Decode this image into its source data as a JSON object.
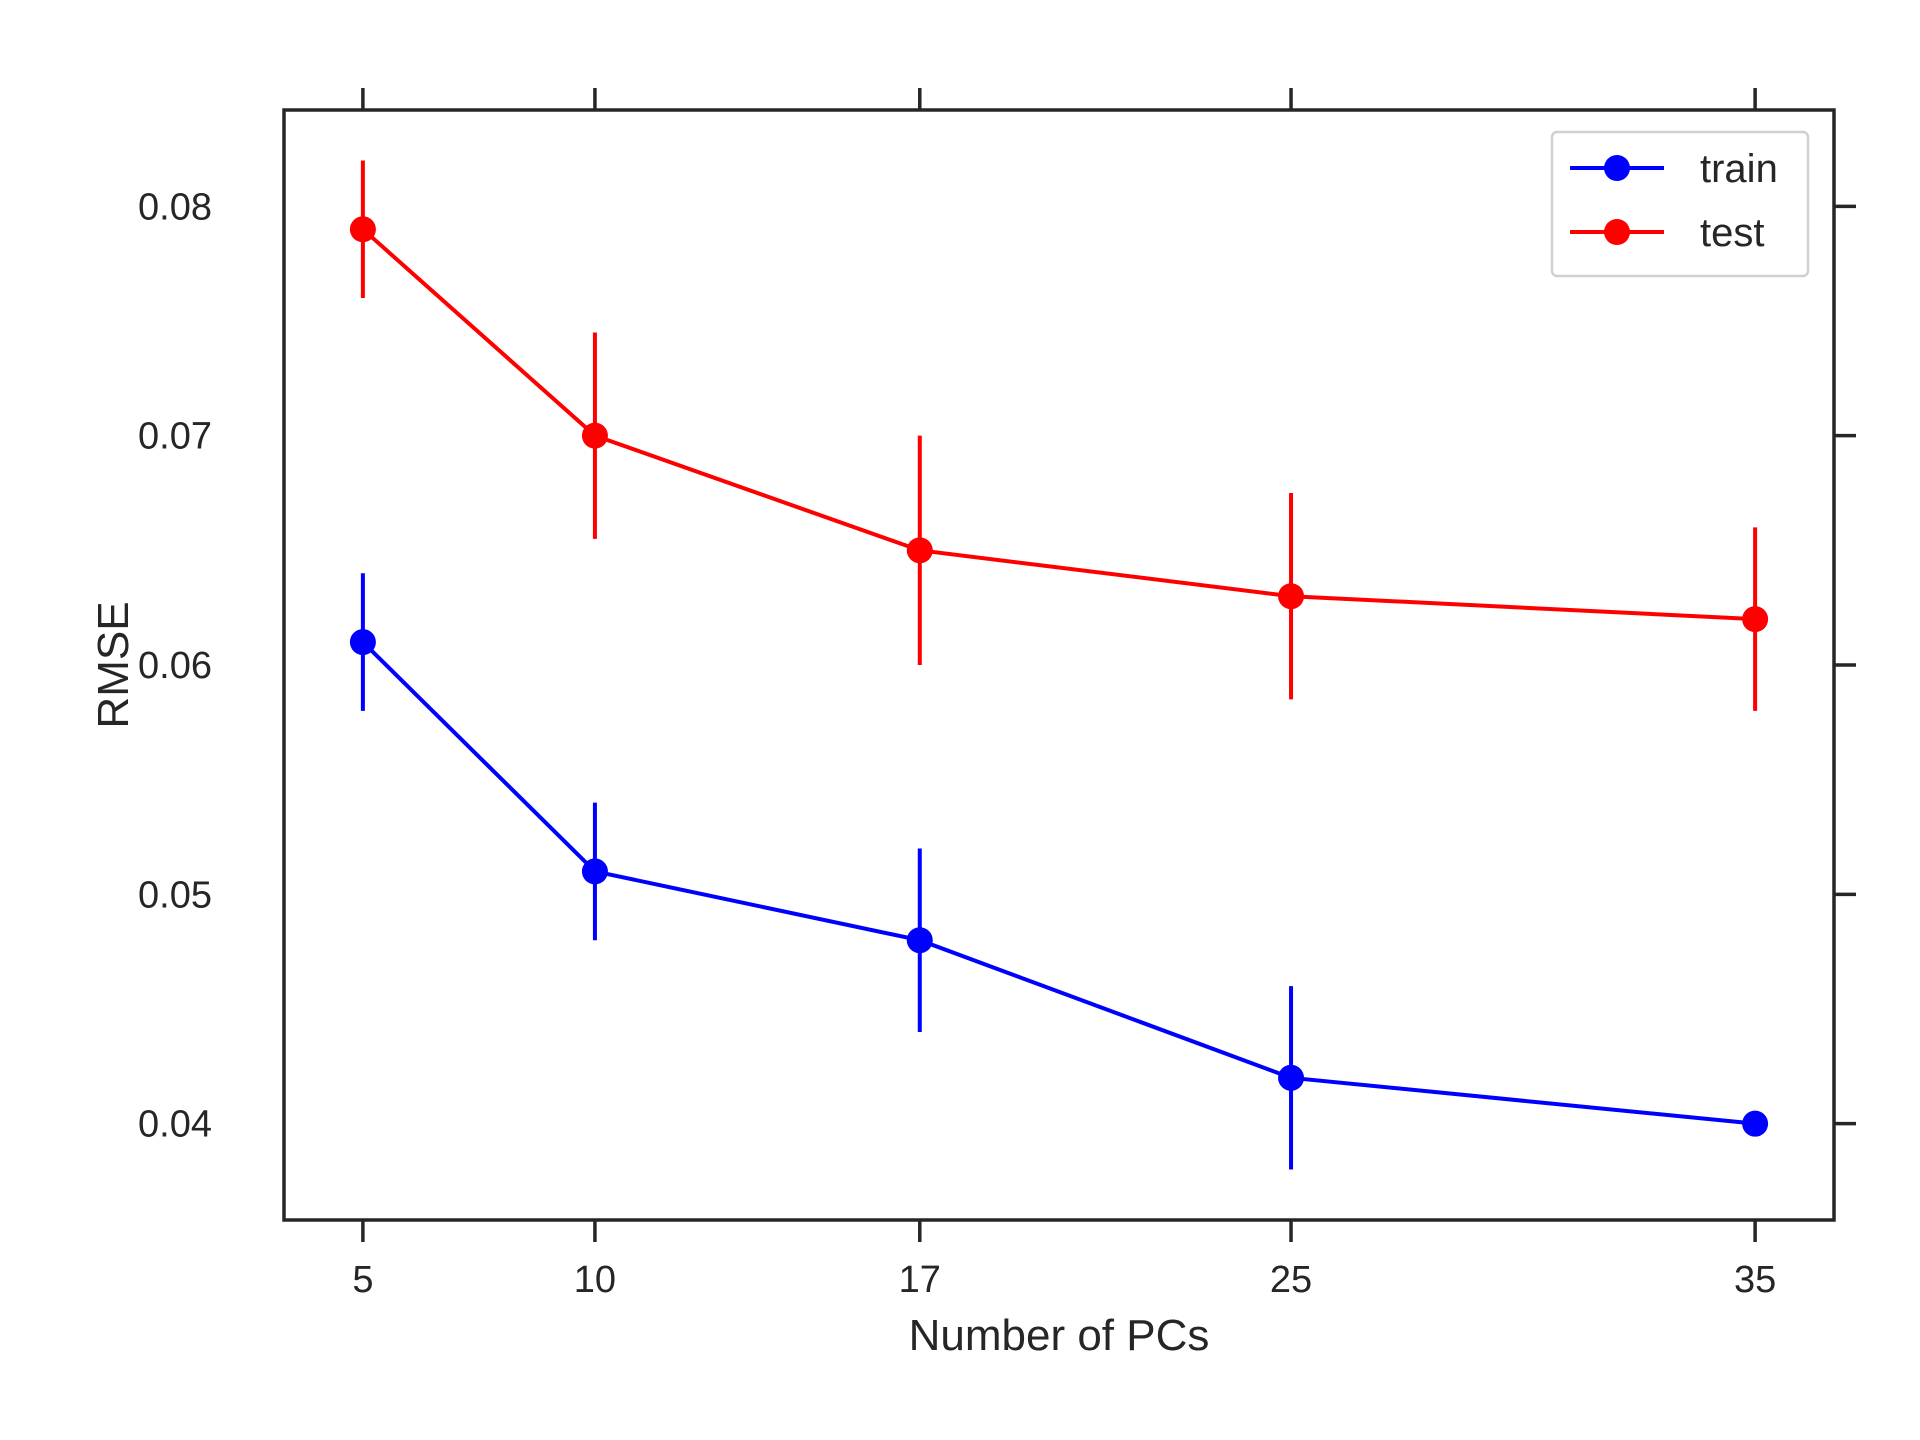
{
  "chart_data": {
    "type": "line",
    "title": "",
    "xlabel": "Number of PCs",
    "ylabel": "RMSE",
    "x": [
      5,
      10,
      17,
      25,
      35
    ],
    "x_ticks": [
      5,
      10,
      17,
      25,
      35
    ],
    "xlim": [
      3.3,
      36.7
    ],
    "y_ticks": [
      0.04,
      0.05,
      0.06,
      0.07,
      0.08
    ],
    "y_tick_labels": [
      "0.04",
      "0.05",
      "0.06",
      "0.07",
      "0.08"
    ],
    "ylim": [
      0.0358,
      0.0842
    ],
    "grid": false,
    "legend_position": "top-right",
    "error_bars": true,
    "series": [
      {
        "name": "train",
        "color": "#0000ff",
        "values": [
          0.061,
          0.051,
          0.048,
          0.042,
          0.04
        ],
        "error": [
          0.003,
          0.003,
          0.004,
          0.004,
          0.0
        ]
      },
      {
        "name": "test",
        "color": "#ff0000",
        "values": [
          0.079,
          0.07,
          0.065,
          0.063,
          0.062
        ],
        "error": [
          0.003,
          0.0045,
          0.005,
          0.0045,
          0.004
        ]
      }
    ]
  }
}
